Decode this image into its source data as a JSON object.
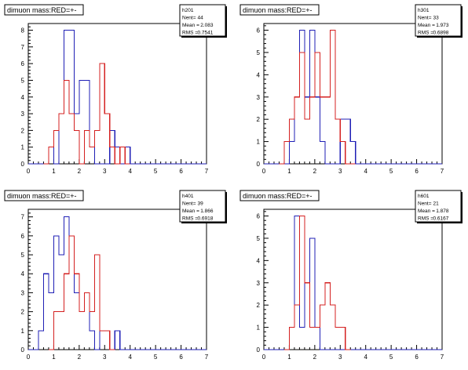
{
  "colors": {
    "blue": "#1f1fb5",
    "red": "#d42020",
    "axis": "#000000",
    "frame": "#000000",
    "background": "#ffffff"
  },
  "chart_data": [
    {
      "type": "histogram",
      "title": "dimuon mass:RED=+-",
      "stats": {
        "name": "h201",
        "nent_label": "Nent=",
        "nent": "44",
        "mean_label": "Mean =",
        "mean": "2.083",
        "rms_label": "RMS =",
        "rms": "0.7541"
      },
      "xlim": [
        0,
        7
      ],
      "ylim": [
        0,
        8.4
      ],
      "xticks": [
        "0",
        "1",
        "2",
        "3",
        "4",
        "5",
        "6",
        "7"
      ],
      "yticks": [
        "0",
        "1",
        "2",
        "3",
        "4",
        "5",
        "6",
        "7",
        "8"
      ],
      "bin_width": 0.2,
      "series": [
        {
          "color": "blue",
          "bins": [
            [
              0.0,
              0
            ],
            [
              0.2,
              0
            ],
            [
              0.4,
              0
            ],
            [
              0.6,
              0
            ],
            [
              0.8,
              1
            ],
            [
              1.0,
              0
            ],
            [
              1.2,
              3
            ],
            [
              1.4,
              8
            ],
            [
              1.6,
              8
            ],
            [
              1.8,
              3
            ],
            [
              2.0,
              5
            ],
            [
              2.2,
              5
            ],
            [
              2.4,
              1
            ],
            [
              2.6,
              0
            ],
            [
              2.8,
              0
            ],
            [
              3.0,
              0
            ],
            [
              3.2,
              2
            ],
            [
              3.4,
              1
            ],
            [
              3.6,
              0
            ],
            [
              3.8,
              1
            ],
            [
              4.0,
              0
            ],
            [
              4.2,
              0
            ],
            [
              4.4,
              0
            ],
            [
              4.6,
              0
            ],
            [
              4.8,
              0
            ],
            [
              5.0,
              0
            ],
            [
              5.2,
              0
            ],
            [
              5.4,
              0
            ],
            [
              5.6,
              0
            ],
            [
              5.8,
              0
            ],
            [
              6.0,
              0
            ],
            [
              6.2,
              0
            ],
            [
              6.4,
              0
            ],
            [
              6.6,
              0
            ],
            [
              6.8,
              0
            ]
          ]
        },
        {
          "color": "red",
          "bins": [
            [
              0.6,
              0
            ],
            [
              0.8,
              1
            ],
            [
              1.0,
              2
            ],
            [
              1.2,
              3
            ],
            [
              1.4,
              5
            ],
            [
              1.6,
              3
            ],
            [
              1.8,
              2
            ],
            [
              2.0,
              0
            ],
            [
              2.2,
              2
            ],
            [
              2.4,
              1
            ],
            [
              2.6,
              2
            ],
            [
              2.8,
              6
            ],
            [
              3.0,
              3
            ],
            [
              3.2,
              1
            ],
            [
              3.4,
              0
            ],
            [
              3.6,
              1
            ],
            [
              3.8,
              0
            ]
          ]
        }
      ]
    },
    {
      "type": "histogram",
      "title": "dimuon mass:RED=+-",
      "stats": {
        "name": "h301",
        "nent_label": "Nent=",
        "nent": "33",
        "mean_label": "Mean =",
        "mean": "1.973",
        "rms_label": "RMS =",
        "rms": "0.6898"
      },
      "xlim": [
        0,
        7
      ],
      "ylim": [
        0,
        6.3
      ],
      "xticks": [
        "0",
        "1",
        "2",
        "3",
        "4",
        "5",
        "6",
        "7"
      ],
      "yticks": [
        "0",
        "1",
        "2",
        "3",
        "4",
        "5",
        "6"
      ],
      "bin_width": 0.2,
      "series": [
        {
          "color": "blue",
          "bins": [
            [
              0.0,
              0
            ],
            [
              0.2,
              0
            ],
            [
              0.4,
              0
            ],
            [
              0.6,
              0
            ],
            [
              0.8,
              0
            ],
            [
              1.0,
              1
            ],
            [
              1.2,
              3
            ],
            [
              1.4,
              6
            ],
            [
              1.6,
              3
            ],
            [
              1.8,
              6
            ],
            [
              2.0,
              3
            ],
            [
              2.2,
              1
            ],
            [
              2.4,
              0
            ],
            [
              2.6,
              0
            ],
            [
              2.8,
              0
            ],
            [
              3.0,
              2
            ],
            [
              3.2,
              2
            ],
            [
              3.4,
              1
            ],
            [
              3.6,
              0
            ],
            [
              3.8,
              0
            ],
            [
              4.0,
              0
            ],
            [
              4.2,
              0
            ],
            [
              4.4,
              0
            ],
            [
              4.6,
              0
            ],
            [
              4.8,
              0
            ],
            [
              5.0,
              0
            ],
            [
              5.2,
              0
            ],
            [
              5.4,
              0
            ],
            [
              5.6,
              0
            ],
            [
              5.8,
              0
            ],
            [
              6.0,
              0
            ],
            [
              6.2,
              0
            ],
            [
              6.4,
              0
            ],
            [
              6.6,
              0
            ],
            [
              6.8,
              0
            ]
          ]
        },
        {
          "color": "red",
          "bins": [
            [
              0.6,
              0
            ],
            [
              0.8,
              1
            ],
            [
              1.0,
              2
            ],
            [
              1.2,
              3
            ],
            [
              1.4,
              5
            ],
            [
              1.6,
              2
            ],
            [
              1.8,
              3
            ],
            [
              2.0,
              5
            ],
            [
              2.2,
              3
            ],
            [
              2.4,
              3
            ],
            [
              2.6,
              6
            ],
            [
              2.8,
              2
            ],
            [
              3.0,
              1
            ],
            [
              3.2,
              0
            ],
            [
              3.4,
              0
            ]
          ]
        }
      ]
    },
    {
      "type": "histogram",
      "title": "dimuon mass:RED=+-",
      "stats": {
        "name": "h401",
        "nent_label": "Nent=",
        "nent": "39",
        "mean_label": "Mean =",
        "mean": "1.866",
        "rms_label": "RMS =",
        "rms": "0.6918"
      },
      "xlim": [
        0,
        7
      ],
      "ylim": [
        0,
        7.4
      ],
      "xticks": [
        "0",
        "1",
        "2",
        "3",
        "4",
        "5",
        "6",
        "7"
      ],
      "yticks": [
        "0",
        "1",
        "2",
        "3",
        "4",
        "5",
        "6",
        "7"
      ],
      "bin_width": 0.2,
      "series": [
        {
          "color": "blue",
          "bins": [
            [
              0.0,
              0
            ],
            [
              0.2,
              0
            ],
            [
              0.4,
              1
            ],
            [
              0.6,
              4
            ],
            [
              0.8,
              3
            ],
            [
              1.0,
              6
            ],
            [
              1.2,
              5
            ],
            [
              1.4,
              7
            ],
            [
              1.6,
              6
            ],
            [
              1.8,
              3
            ],
            [
              2.0,
              2
            ],
            [
              2.2,
              3
            ],
            [
              2.4,
              1
            ],
            [
              2.6,
              0
            ],
            [
              2.8,
              1
            ],
            [
              3.0,
              1
            ],
            [
              3.2,
              0
            ],
            [
              3.4,
              1
            ],
            [
              3.6,
              0
            ],
            [
              3.8,
              0
            ],
            [
              4.0,
              0
            ],
            [
              4.2,
              0
            ],
            [
              4.4,
              0
            ],
            [
              4.6,
              0
            ],
            [
              4.8,
              0
            ],
            [
              5.0,
              0
            ],
            [
              5.2,
              0
            ],
            [
              5.4,
              0
            ],
            [
              5.6,
              0
            ],
            [
              5.8,
              0
            ],
            [
              6.0,
              0
            ],
            [
              6.2,
              0
            ],
            [
              6.4,
              0
            ],
            [
              6.6,
              0
            ],
            [
              6.8,
              0
            ]
          ]
        },
        {
          "color": "red",
          "bins": [
            [
              0.8,
              0
            ],
            [
              1.0,
              2
            ],
            [
              1.2,
              2
            ],
            [
              1.4,
              4
            ],
            [
              1.6,
              6
            ],
            [
              1.8,
              4
            ],
            [
              2.0,
              2
            ],
            [
              2.2,
              3
            ],
            [
              2.4,
              2
            ],
            [
              2.6,
              5
            ],
            [
              2.8,
              1
            ],
            [
              3.0,
              1
            ],
            [
              3.2,
              0
            ]
          ]
        }
      ]
    },
    {
      "type": "histogram",
      "title": "dimuon mass:RED=+-",
      "stats": {
        "name": "h601",
        "nent_label": "Nent=",
        "nent": "21",
        "mean_label": "Mean =",
        "mean": "1.878",
        "rms_label": "RMS =",
        "rms": "0.6167"
      },
      "xlim": [
        0,
        7
      ],
      "ylim": [
        0,
        6.3
      ],
      "xticks": [
        "0",
        "1",
        "2",
        "3",
        "4",
        "5",
        "6",
        "7"
      ],
      "yticks": [
        "0",
        "1",
        "2",
        "3",
        "4",
        "5",
        "6"
      ],
      "bin_width": 0.2,
      "series": [
        {
          "color": "blue",
          "bins": [
            [
              0.0,
              0
            ],
            [
              0.2,
              0
            ],
            [
              0.4,
              0
            ],
            [
              0.6,
              0
            ],
            [
              0.8,
              0
            ],
            [
              1.0,
              1
            ],
            [
              1.2,
              6
            ],
            [
              1.4,
              1
            ],
            [
              1.6,
              3
            ],
            [
              1.8,
              5
            ],
            [
              2.0,
              1
            ],
            [
              2.2,
              0
            ],
            [
              2.4,
              0
            ],
            [
              2.6,
              0
            ],
            [
              2.8,
              0
            ],
            [
              3.0,
              0
            ],
            [
              3.2,
              0
            ],
            [
              3.4,
              0
            ],
            [
              3.6,
              0
            ],
            [
              3.8,
              0
            ],
            [
              4.0,
              0
            ],
            [
              4.2,
              0
            ],
            [
              4.4,
              0
            ],
            [
              4.6,
              0
            ],
            [
              4.8,
              0
            ],
            [
              5.0,
              0
            ],
            [
              5.2,
              0
            ],
            [
              5.4,
              0
            ],
            [
              5.6,
              0
            ],
            [
              5.8,
              0
            ],
            [
              6.0,
              0
            ],
            [
              6.2,
              0
            ],
            [
              6.4,
              0
            ],
            [
              6.6,
              0
            ],
            [
              6.8,
              0
            ]
          ]
        },
        {
          "color": "red",
          "bins": [
            [
              0.8,
              0
            ],
            [
              1.0,
              1
            ],
            [
              1.2,
              2
            ],
            [
              1.4,
              6
            ],
            [
              1.6,
              3
            ],
            [
              1.8,
              1
            ],
            [
              2.0,
              1
            ],
            [
              2.2,
              2
            ],
            [
              2.4,
              3
            ],
            [
              2.6,
              2
            ],
            [
              2.8,
              1
            ],
            [
              3.0,
              1
            ],
            [
              3.2,
              0
            ]
          ]
        }
      ]
    }
  ]
}
